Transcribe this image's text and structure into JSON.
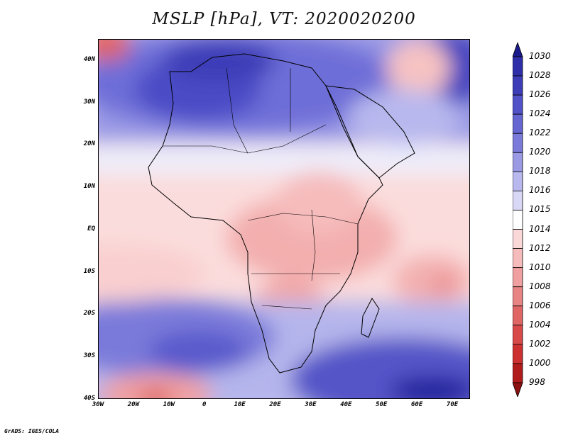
{
  "title": "MSLP [hPa], VT: 2020020200",
  "credit": "GrADS: IGES/COLA",
  "map": {
    "variable": "Mean sea level pressure",
    "units": "hPa",
    "region": "Africa",
    "lat_range": [
      -40,
      45
    ],
    "lon_range": [
      -30,
      75
    ],
    "lat_ticks": [
      "40N",
      "30N",
      "20N",
      "10N",
      "EQ",
      "10S",
      "20S",
      "30S",
      "40S"
    ],
    "lat_values": [
      40,
      30,
      20,
      10,
      0,
      -10,
      -20,
      -30,
      -40
    ],
    "lon_ticks": [
      "30W",
      "20W",
      "10W",
      "0",
      "10E",
      "20E",
      "30E",
      "40E",
      "50E",
      "60E",
      "70E"
    ],
    "lon_values": [
      -30,
      -20,
      -10,
      0,
      10,
      20,
      30,
      40,
      50,
      60,
      70
    ]
  },
  "colorbar": {
    "levels": [
      "1030",
      "1028",
      "1026",
      "1024",
      "1022",
      "1020",
      "1018",
      "1016",
      "1015",
      "1014",
      "1012",
      "1010",
      "1008",
      "1006",
      "1004",
      "1002",
      "1000",
      "998"
    ],
    "colors": [
      "#1a1a8c",
      "#2e2ea8",
      "#3d3db8",
      "#5151c8",
      "#6666d2",
      "#7a7ada",
      "#9999e4",
      "#b8b8ee",
      "#d8d8f6",
      "#ffffff",
      "#fbd8d8",
      "#f6bcbc",
      "#f0a0a0",
      "#e88484",
      "#e06666",
      "#d84a4a",
      "#cc3030",
      "#b01c1c",
      "#8c1010"
    ]
  }
}
